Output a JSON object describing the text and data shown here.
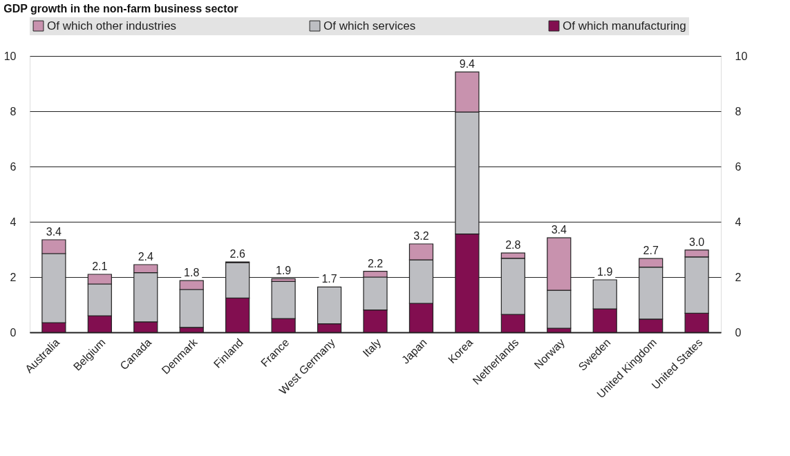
{
  "chart_data": {
    "type": "bar",
    "title": "GDP growth in the non-farm business sector",
    "stacked": true,
    "categories": [
      "Australia",
      "Belgium",
      "Canada",
      "Denmark",
      "Finland",
      "France",
      "West Germany",
      "Italy",
      "Japan",
      "Korea",
      "Netherlands",
      "Norway",
      "Sweden",
      "United Kingdom",
      "United States"
    ],
    "series": [
      {
        "name": "Of which manufacturing",
        "color": "#820e50",
        "values": [
          0.35,
          0.6,
          0.38,
          0.18,
          1.24,
          0.5,
          0.31,
          0.81,
          1.05,
          3.56,
          0.65,
          0.15,
          0.85,
          0.48,
          0.69
        ]
      },
      {
        "name": "Of which services",
        "color": "#bdbec2",
        "values": [
          2.5,
          1.15,
          1.78,
          1.37,
          1.28,
          1.34,
          1.33,
          1.19,
          1.57,
          4.41,
          2.03,
          1.37,
          1.05,
          1.88,
          2.04
        ]
      },
      {
        "name": "Of which other industries",
        "color": "#c892ae",
        "values": [
          0.5,
          0.35,
          0.29,
          0.32,
          0.03,
          0.1,
          null,
          0.21,
          0.58,
          1.45,
          0.19,
          1.9,
          null,
          0.31,
          0.25
        ]
      }
    ],
    "totals": [
      "3.4",
      "2.1",
      "2.4",
      "1.8",
      "2.6",
      "1.9",
      "1.7",
      "2.2",
      "3.2",
      "9.4",
      "2.8",
      "3.4",
      "1.9",
      "2.7",
      "3.0"
    ],
    "ylim": [
      0,
      10
    ],
    "yticks": [
      0,
      2,
      4,
      6,
      8,
      10
    ],
    "y2lim": [
      0,
      10
    ],
    "y2ticks": [
      0,
      2,
      4,
      6,
      8,
      10
    ],
    "grid": "y",
    "legend": "top"
  }
}
